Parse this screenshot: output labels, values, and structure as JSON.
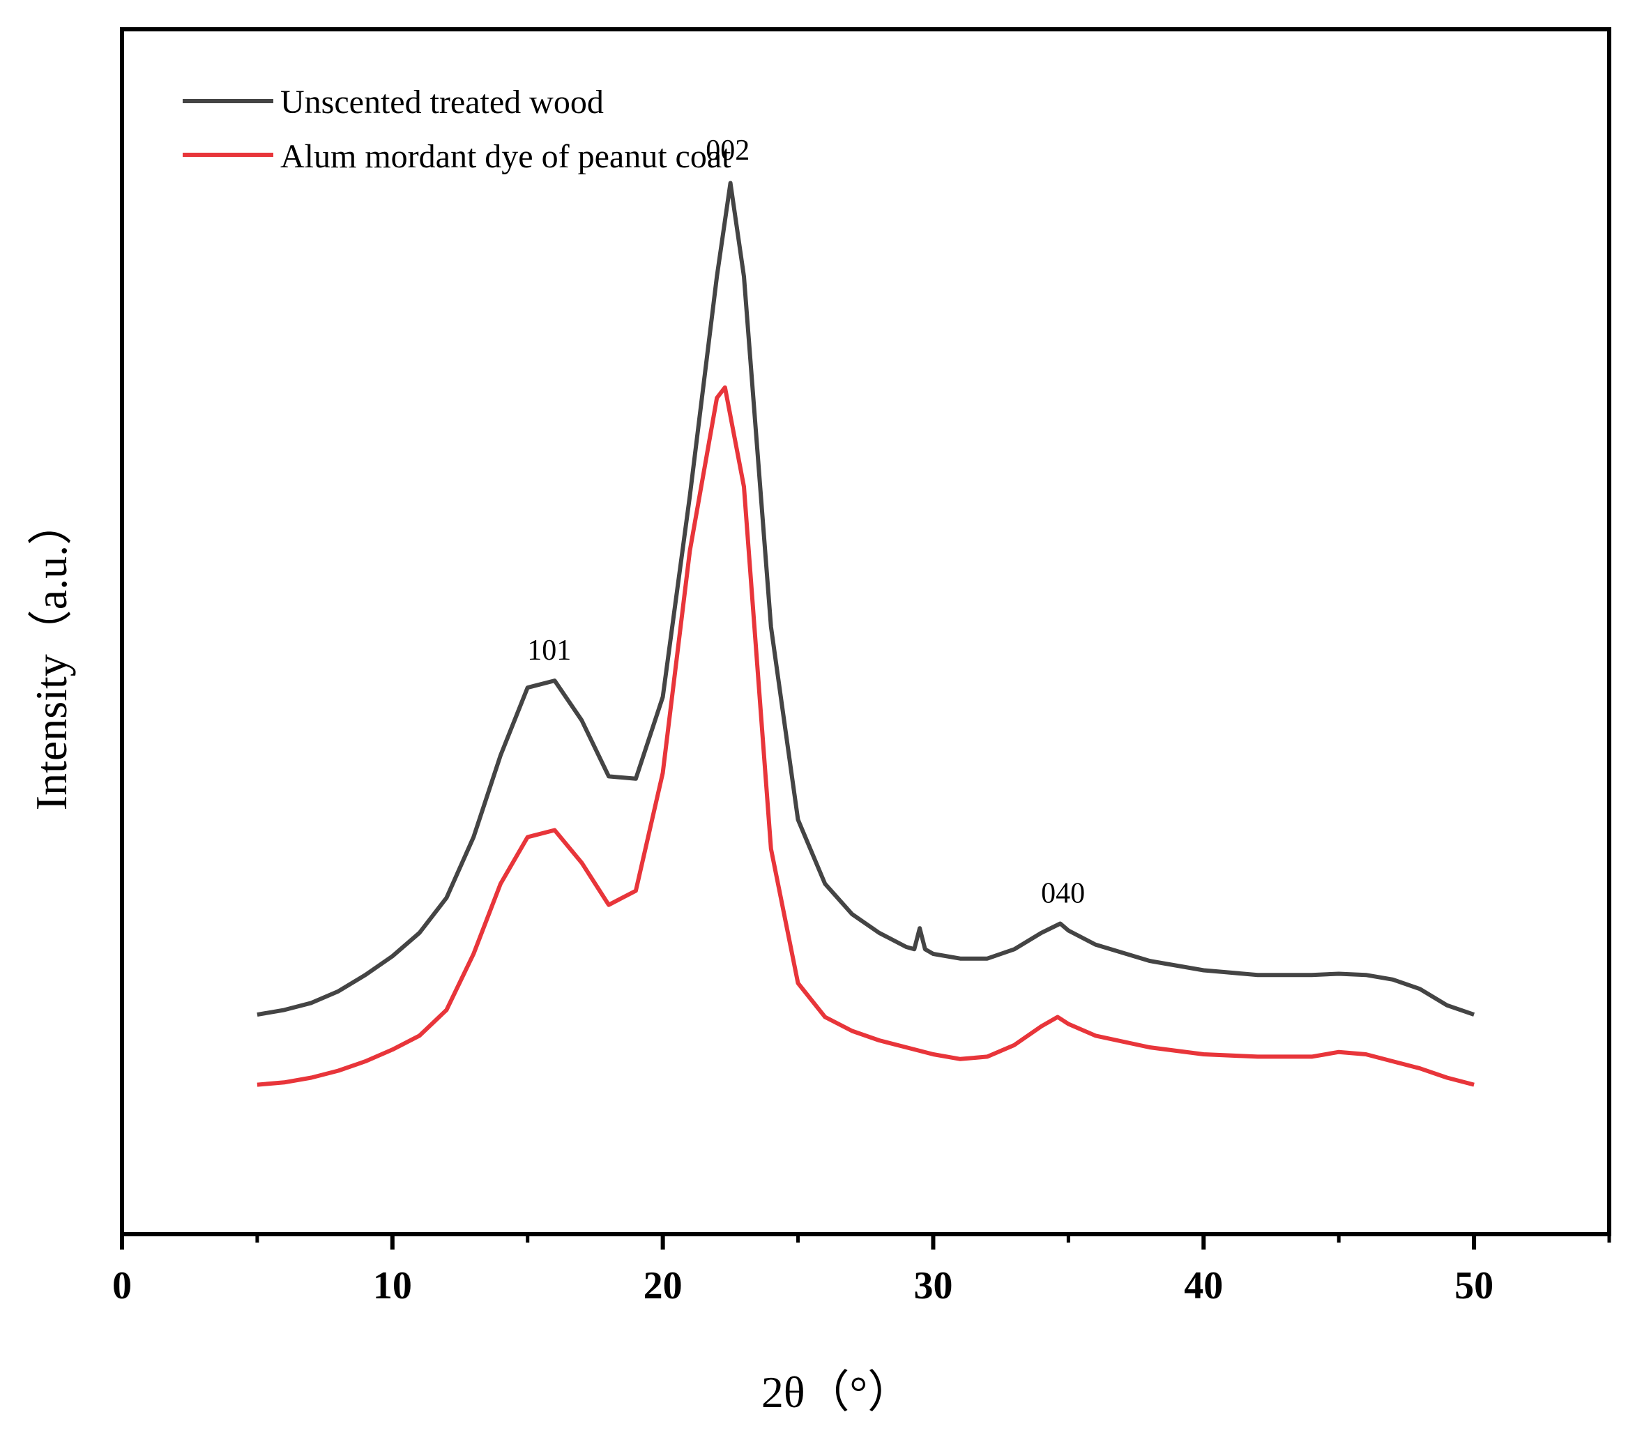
{
  "chart_data": {
    "type": "line",
    "title": "",
    "xlabel": "2θ（°）",
    "ylabel": "Intensity（a.u.）",
    "xlim": [
      0,
      55
    ],
    "ylim": [
      0,
      1000
    ],
    "x_ticks": [
      0,
      10,
      20,
      30,
      40,
      50
    ],
    "x_minor_ticks": [
      5,
      15,
      25,
      35,
      45,
      55
    ],
    "legend_position": "top-left",
    "series": [
      {
        "name": "Unscented treated wood",
        "color": "#444444",
        "points": [
          [
            5,
            188
          ],
          [
            6,
            192
          ],
          [
            7,
            198
          ],
          [
            8,
            208
          ],
          [
            9,
            222
          ],
          [
            10,
            238
          ],
          [
            11,
            258
          ],
          [
            12,
            288
          ],
          [
            13,
            340
          ],
          [
            14,
            410
          ],
          [
            15,
            468
          ],
          [
            16,
            474
          ],
          [
            17,
            440
          ],
          [
            18,
            392
          ],
          [
            19,
            390
          ],
          [
            20,
            460
          ],
          [
            21,
            632
          ],
          [
            22,
            820
          ],
          [
            22.5,
            900
          ],
          [
            23,
            820
          ],
          [
            24,
            520
          ],
          [
            25,
            355
          ],
          [
            26,
            300
          ],
          [
            27,
            274
          ],
          [
            28,
            258
          ],
          [
            29,
            246
          ],
          [
            29.3,
            244
          ],
          [
            29.5,
            262
          ],
          [
            29.7,
            244
          ],
          [
            30,
            240
          ],
          [
            31,
            236
          ],
          [
            32,
            236
          ],
          [
            33,
            244
          ],
          [
            34,
            258
          ],
          [
            34.7,
            266
          ],
          [
            35,
            260
          ],
          [
            36,
            248
          ],
          [
            38,
            234
          ],
          [
            40,
            226
          ],
          [
            42,
            222
          ],
          [
            44,
            222
          ],
          [
            45,
            223
          ],
          [
            46,
            222
          ],
          [
            47,
            218
          ],
          [
            48,
            210
          ],
          [
            49,
            196
          ],
          [
            50,
            188
          ]
        ]
      },
      {
        "name": "Alum mordant dye of peanut coat",
        "color": "#e8353a",
        "points": [
          [
            5,
            128
          ],
          [
            6,
            130
          ],
          [
            7,
            134
          ],
          [
            8,
            140
          ],
          [
            9,
            148
          ],
          [
            10,
            158
          ],
          [
            11,
            170
          ],
          [
            12,
            192
          ],
          [
            13,
            240
          ],
          [
            14,
            300
          ],
          [
            15,
            340
          ],
          [
            16,
            346
          ],
          [
            17,
            318
          ],
          [
            18,
            282
          ],
          [
            19,
            294
          ],
          [
            20,
            395
          ],
          [
            21,
            585
          ],
          [
            22,
            716
          ],
          [
            22.3,
            725
          ],
          [
            23,
            640
          ],
          [
            24,
            330
          ],
          [
            25,
            215
          ],
          [
            26,
            186
          ],
          [
            27,
            174
          ],
          [
            28,
            166
          ],
          [
            29,
            160
          ],
          [
            30,
            154
          ],
          [
            31,
            150
          ],
          [
            32,
            152
          ],
          [
            33,
            162
          ],
          [
            34,
            178
          ],
          [
            34.6,
            186
          ],
          [
            35,
            180
          ],
          [
            36,
            170
          ],
          [
            38,
            160
          ],
          [
            40,
            154
          ],
          [
            42,
            152
          ],
          [
            44,
            152
          ],
          [
            45,
            156
          ],
          [
            46,
            154
          ],
          [
            47,
            148
          ],
          [
            48,
            142
          ],
          [
            49,
            134
          ],
          [
            50,
            128
          ]
        ]
      }
    ],
    "annotations": [
      {
        "text": "101",
        "x": 15.8,
        "y": 492
      },
      {
        "text": "002",
        "x": 22.4,
        "y": 920
      },
      {
        "text": "040",
        "x": 34.8,
        "y": 284
      }
    ]
  }
}
